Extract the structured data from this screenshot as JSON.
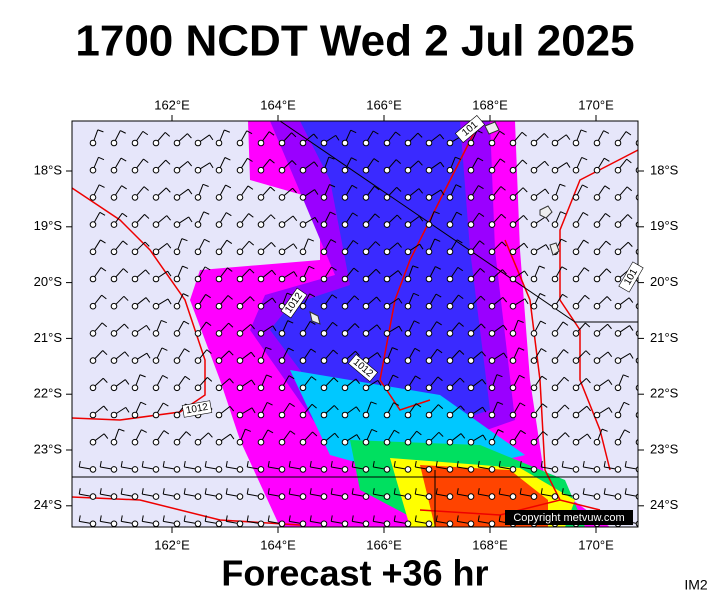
{
  "header": {
    "title": "1700 NCDT Wed 2 Jul 2025"
  },
  "map": {
    "lon_labels": [
      "162°E",
      "164°E",
      "166°E",
      "168°E",
      "170°E"
    ],
    "lat_labels": [
      "18°S",
      "19°S",
      "20°S",
      "21°S",
      "22°S",
      "23°S",
      "24°S"
    ],
    "isobar_labels": [
      "1012",
      "1012",
      "1012",
      "101",
      "101"
    ],
    "copyright": "Copyright metvuw.com"
  },
  "footer": {
    "forecast": "Forecast +36 hr",
    "id": "IM2"
  }
}
